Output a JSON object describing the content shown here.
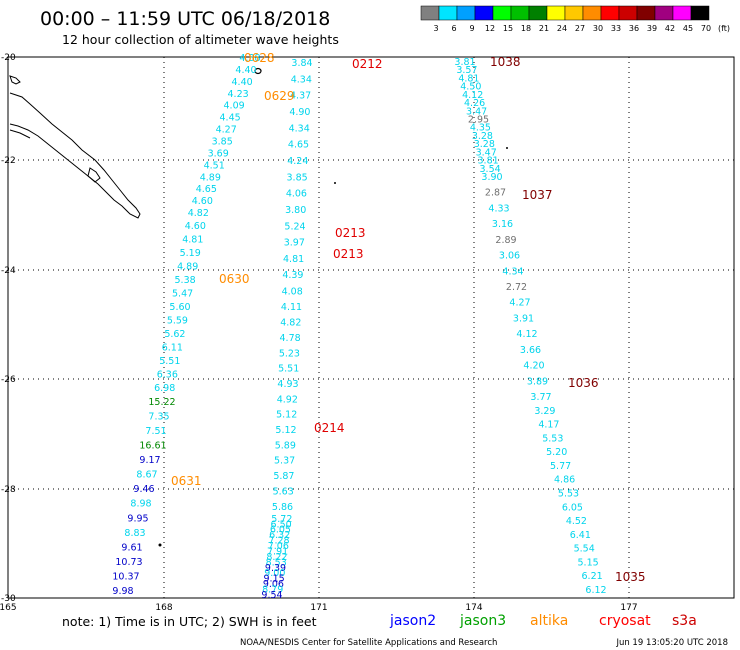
{
  "header": {
    "title": "00:00 – 11:59 UTC 06/18/2018",
    "subtitle": "12 hour collection of altimeter wave heights"
  },
  "legend": {
    "unit": "(ft)",
    "bins": [
      {
        "label": "3",
        "color": "#808080"
      },
      {
        "label": "6",
        "color": "#00e5ff"
      },
      {
        "label": "9",
        "color": "#00a0ff"
      },
      {
        "label": "12",
        "color": "#0000ff"
      },
      {
        "label": "15",
        "color": "#00ff00"
      },
      {
        "label": "18",
        "color": "#00c000"
      },
      {
        "label": "21",
        "color": "#008000"
      },
      {
        "label": "24",
        "color": "#ffff00"
      },
      {
        "label": "27",
        "color": "#ffc800"
      },
      {
        "label": "30",
        "color": "#ff8c00"
      },
      {
        "label": "33",
        "color": "#ff0000"
      },
      {
        "label": "36",
        "color": "#cc0000"
      },
      {
        "label": "39",
        "color": "#800000"
      },
      {
        "label": "42",
        "color": "#a00080"
      },
      {
        "label": "45",
        "color": "#ff00ff"
      },
      {
        "label": "70",
        "color": "#000000"
      }
    ]
  },
  "colors": {
    "gray": "#707070",
    "cyan": "#00d4ec",
    "blue": "#0000c8",
    "green": "#008800",
    "orange": "#ff8c00",
    "red": "#e00000",
    "maroon": "#800000",
    "grid": "#000000"
  },
  "axes": {
    "lon_ticks": [
      "165",
      "168",
      "171",
      "174",
      "177"
    ],
    "lat_ticks": [
      "-20",
      "-22",
      "-24",
      "-26",
      "-28",
      "-30"
    ]
  },
  "track_a": [
    {
      "v": "4.38"
    },
    {
      "v": "4.40"
    },
    {
      "v": "4.40"
    },
    {
      "v": "4.23"
    },
    {
      "v": "4.09"
    },
    {
      "v": "4.45"
    },
    {
      "v": "4.27"
    },
    {
      "v": "3.85"
    },
    {
      "v": "3.69"
    },
    {
      "v": "4.51"
    },
    {
      "v": "4.89"
    },
    {
      "v": "4.65"
    },
    {
      "v": "4.60"
    },
    {
      "v": "4.82"
    },
    {
      "v": "4.60"
    },
    {
      "v": "4.81"
    },
    {
      "v": "5.19"
    },
    {
      "v": "4.89"
    },
    {
      "v": "5.38"
    },
    {
      "v": "5.47"
    },
    {
      "v": "5.60"
    },
    {
      "v": "5.59"
    },
    {
      "v": "5.62"
    },
    {
      "v": "6.11"
    },
    {
      "v": "5.51"
    },
    {
      "v": "6.36"
    },
    {
      "v": "6.98"
    },
    {
      "v": "15.22",
      "c": "green"
    },
    {
      "v": "7.35"
    },
    {
      "v": "7.51"
    },
    {
      "v": "16.61",
      "c": "green"
    },
    {
      "v": "9.17",
      "c": "blue"
    },
    {
      "v": "8.67"
    },
    {
      "v": "9.46",
      "c": "blue"
    },
    {
      "v": "8.98"
    },
    {
      "v": "9.95",
      "c": "blue"
    },
    {
      "v": "8.83"
    },
    {
      "v": "9.61",
      "c": "blue"
    },
    {
      "v": "10.73",
      "c": "blue"
    },
    {
      "v": "10.37",
      "c": "blue"
    },
    {
      "v": "9.98",
      "c": "blue"
    }
  ],
  "track_b": [
    {
      "v": "3.84"
    },
    {
      "v": "4.34"
    },
    {
      "v": "4.37"
    },
    {
      "v": "4.90"
    },
    {
      "v": "4.34"
    },
    {
      "v": "4.65"
    },
    {
      "v": "4.24"
    },
    {
      "v": "3.85"
    },
    {
      "v": "4.06"
    },
    {
      "v": "3.80"
    },
    {
      "v": "5.24"
    },
    {
      "v": "3.97"
    },
    {
      "v": "4.81"
    },
    {
      "v": "4.39"
    },
    {
      "v": "4.08"
    },
    {
      "v": "4.11"
    },
    {
      "v": "4.82"
    },
    {
      "v": "4.78"
    },
    {
      "v": "5.23"
    },
    {
      "v": "5.51"
    },
    {
      "v": "4.93"
    },
    {
      "v": "4.92"
    },
    {
      "v": "5.12"
    },
    {
      "v": "5.12"
    },
    {
      "v": "5.89"
    },
    {
      "v": "5.37"
    },
    {
      "v": "5.87"
    },
    {
      "v": "5.63"
    },
    {
      "v": "5.86"
    },
    {
      "v": "5.72"
    },
    {
      "v": "6.50"
    },
    {
      "v": "6.05"
    },
    {
      "v": "6.32"
    },
    {
      "v": "7.28"
    },
    {
      "v": "7.06"
    },
    {
      "v": "7.91"
    },
    {
      "v": "8.22"
    },
    {
      "v": "8.53"
    },
    {
      "v": "9.39",
      "c": "blue"
    },
    {
      "v": "9.00"
    },
    {
      "v": "9.15",
      "c": "blue"
    },
    {
      "v": "9.06",
      "c": "blue"
    },
    {
      "v": "8.79"
    },
    {
      "v": "9.54",
      "c": "blue"
    }
  ],
  "track_c": [
    {
      "v": "3.81"
    },
    {
      "v": "3.57"
    },
    {
      "v": "4.81"
    },
    {
      "v": "4.50"
    },
    {
      "v": "4.12"
    },
    {
      "v": "4.26"
    },
    {
      "v": "3.47"
    },
    {
      "v": "2.95",
      "c": "gray"
    },
    {
      "v": "4.35"
    },
    {
      "v": "3.28"
    },
    {
      "v": "3.28"
    },
    {
      "v": "3.47"
    },
    {
      "v": "3.81"
    },
    {
      "v": "3.54"
    },
    {
      "v": "3.90"
    },
    {
      "v": "2.87",
      "c": "gray"
    },
    {
      "v": "4.33"
    },
    {
      "v": "3.16"
    },
    {
      "v": "2.89",
      "c": "gray"
    },
    {
      "v": "3.06"
    },
    {
      "v": "4.34"
    },
    {
      "v": "2.72",
      "c": "gray"
    },
    {
      "v": "4.27"
    },
    {
      "v": "3.91"
    },
    {
      "v": "4.12"
    },
    {
      "v": "3.66"
    },
    {
      "v": "4.20"
    },
    {
      "v": "3.89"
    },
    {
      "v": "3.77"
    },
    {
      "v": "3.29"
    },
    {
      "v": "4.17"
    },
    {
      "v": "5.53"
    },
    {
      "v": "5.20"
    },
    {
      "v": "5.77"
    },
    {
      "v": "4.86"
    },
    {
      "v": "5.53"
    },
    {
      "v": "6.05"
    },
    {
      "v": "4.52"
    },
    {
      "v": "6.41"
    },
    {
      "v": "5.54"
    },
    {
      "v": "5.15"
    },
    {
      "v": "6.21"
    },
    {
      "v": "6.12"
    }
  ],
  "time_labels": [
    {
      "t": "0628",
      "c": "orange"
    },
    {
      "t": "0629",
      "c": "orange"
    },
    {
      "t": "0630",
      "c": "orange"
    },
    {
      "t": "0631",
      "c": "orange"
    },
    {
      "t": "0212",
      "c": "red"
    },
    {
      "t": "0213",
      "c": "red"
    },
    {
      "t": "0213",
      "c": "red"
    },
    {
      "t": "0214",
      "c": "red"
    },
    {
      "t": "1038",
      "c": "maroon"
    },
    {
      "t": "1037",
      "c": "maroon"
    },
    {
      "t": "1036",
      "c": "maroon"
    },
    {
      "t": "1035",
      "c": "maroon"
    }
  ],
  "footer": {
    "note": "note: 1) Time is in UTC; 2) SWH is in feet",
    "satellites": [
      {
        "name": "jason2",
        "color": "#0000ff"
      },
      {
        "name": "jason3",
        "color": "#00a000"
      },
      {
        "name": "altika",
        "color": "#ff8c00"
      },
      {
        "name": "cryosat",
        "color": "#ff0000"
      },
      {
        "name": "s3a",
        "color": "#cc0000"
      }
    ],
    "credit": "NOAA/NESDIS Center for Satellite Applications and Research",
    "timestamp": "Jun 19 13:05:20 UTC 2018"
  }
}
